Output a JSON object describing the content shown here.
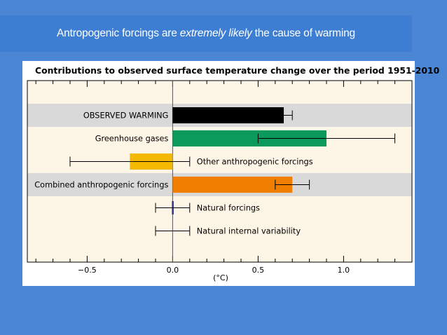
{
  "slide": {
    "title_prefix": "Antropogenic forcings are ",
    "title_emphasis": "extremely likely",
    "title_suffix": " the cause of warming"
  },
  "colors": {
    "background": "#4a86d4",
    "banner": "#3d7ed3",
    "plot_background": "#fdf6e6",
    "row_highlight": "#d9d9d9",
    "observed": "#000000",
    "greenhouse": "#0c9a5c",
    "other_anthropogenic": "#f5b800",
    "combined": "#f07f00",
    "natural_forcings": "#2e3192"
  },
  "chart_data": {
    "type": "bar",
    "orientation": "horizontal",
    "title": "Contributions to observed surface temperature change over the period 1951-2010",
    "xlabel": "(°C)",
    "xlim": [
      -0.85,
      1.4
    ],
    "xticks": [
      -0.5,
      0.0,
      0.5,
      1.0
    ],
    "xtick_labels": [
      "−0.5",
      "0.0",
      "0.5",
      "1.0"
    ],
    "grid": false,
    "categories": [
      "OBSERVED WARMING",
      "Greenhouse gases",
      "Other anthropogenic forcings",
      "Combined anthropogenic forcings",
      "Natural forcings",
      "Natural internal variability"
    ],
    "values": [
      0.65,
      0.9,
      -0.25,
      0.7,
      0.0,
      0.0
    ],
    "error_low": [
      0.6,
      0.5,
      -0.6,
      0.6,
      -0.1,
      -0.1
    ],
    "error_high": [
      0.7,
      1.3,
      0.1,
      0.8,
      0.1,
      0.1
    ],
    "label_side": [
      "left",
      "left",
      "right",
      "left",
      "right",
      "right"
    ],
    "highlighted_rows": [
      0,
      3
    ],
    "bar_colors": [
      "#000000",
      "#0c9a5c",
      "#f5b800",
      "#f07f00",
      "#2e3192",
      "none"
    ]
  }
}
